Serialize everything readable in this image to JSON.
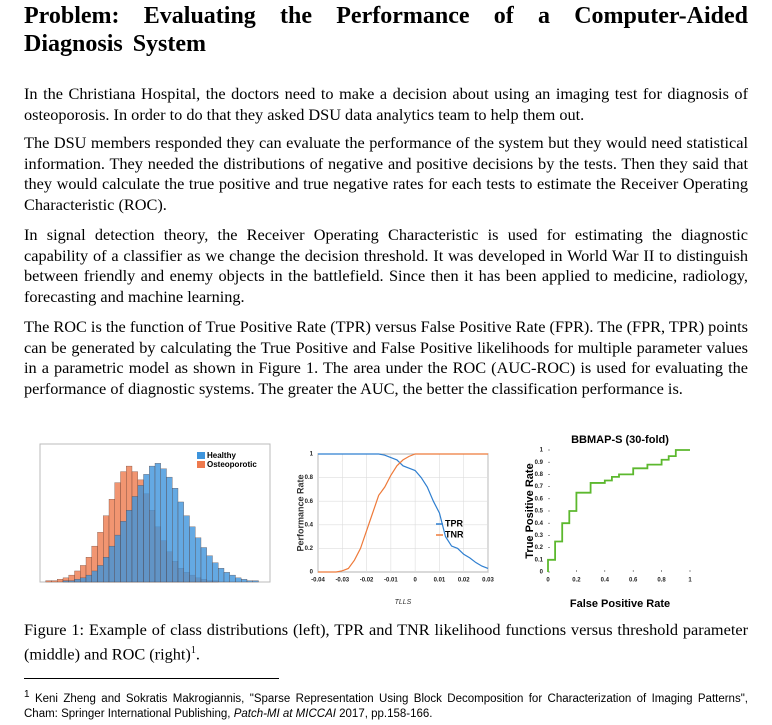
{
  "title": "Problem: Evaluating the Performance of a Computer-Aided Diagnosis System",
  "paragraphs": [
    "In the Christiana Hospital, the doctors need to make a decision about using an imaging test for diagnosis of osteoporosis. In order to do that they asked DSU data analytics team to help them out.",
    "The DSU members responded they can evaluate the performance of the system but they would need statistical information. They needed the distributions of negative and positive decisions by the tests. Then they said that they would calculate the true positive and true negative rates for each tests to estimate the Receiver Operating Characteristic (ROC).",
    "In signal detection theory, the Receiver Operating Characteristic is used for estimating the diagnostic capability of a classifier as we change the decision threshold. It was developed in World War II to distinguish between friendly and enemy objects in the battlefield. Since then it has been applied to medicine, radiology, forecasting and machine learning.",
    "The ROC is the function of True Positive Rate (TPR) versus False Positive Rate (FPR). The (FPR, TPR) points can be generated by calculating the True Positive and False Positive likelihoods for multiple parameter values in a parametric model as shown in Figure 1. The area under the ROC (AUC-ROC) is used for evaluating the performance of diagnostic systems. The greater the AUC, the better the classification performance is."
  ],
  "caption": {
    "text": "Figure 1: Example of class distributions (left), TPR and TNR likelihood functions versus threshold parameter (middle) and ROC (right)",
    "sup": "1",
    "end": "."
  },
  "footnote": {
    "marker": "1",
    "before": "Keni Zheng and Sokratis Makrogiannis, \"Sparse Representation Using Block Decomposition for Characterization of Imaging Patterns\", Cham: Springer International Publishing, ",
    "italic": "Patch-MI at MICCAI",
    "after": " 2017, pp.158-166."
  },
  "chart_data": [
    {
      "type": "histogram",
      "bins": [
        0,
        1,
        2,
        3,
        4,
        5,
        6,
        7,
        8,
        9,
        10,
        11,
        12,
        13,
        14,
        15,
        16,
        17,
        18,
        19,
        20,
        21,
        22,
        23,
        24,
        25,
        26,
        27,
        28,
        29,
        30,
        31,
        32,
        33,
        34,
        35,
        36,
        37,
        38,
        39,
        40
      ],
      "series": [
        {
          "name": "Osteoporotic",
          "color": "#ee7a4e",
          "values": [
            0,
            1,
            1,
            2,
            3,
            5,
            8,
            12,
            18,
            26,
            36,
            48,
            60,
            72,
            80,
            84,
            80,
            74,
            64,
            52,
            40,
            30,
            22,
            15,
            10,
            7,
            5,
            3,
            2,
            1,
            1,
            0,
            0,
            0,
            0,
            0,
            0,
            0,
            0,
            0
          ]
        },
        {
          "name": "Healthy",
          "color": "#3d94dc",
          "values": [
            0,
            0,
            0,
            0,
            1,
            1,
            2,
            3,
            5,
            8,
            12,
            18,
            26,
            34,
            44,
            52,
            62,
            70,
            78,
            84,
            86,
            82,
            76,
            68,
            58,
            48,
            40,
            32,
            25,
            19,
            14,
            10,
            7,
            5,
            3,
            2,
            1,
            1,
            0,
            0
          ]
        }
      ],
      "xlim": [
        0,
        40
      ],
      "ylim": [
        0,
        100
      ]
    },
    {
      "type": "line",
      "ylabel": "Performance Rate",
      "xlabel": "TLLS",
      "x": [
        -0.04,
        -0.0375,
        -0.035,
        -0.0325,
        -0.03,
        -0.0275,
        -0.025,
        -0.0225,
        -0.02,
        -0.0175,
        -0.015,
        -0.0125,
        -0.01,
        -0.0075,
        -0.005,
        -0.0025,
        0,
        0.0025,
        0.005,
        0.0075,
        0.01,
        0.0125,
        0.015,
        0.0175,
        0.02,
        0.0225,
        0.025,
        0.0275,
        0.03
      ],
      "series": [
        {
          "name": "TPR",
          "color": "#2f7fd0",
          "values": [
            1,
            1,
            1,
            1,
            1,
            1,
            1,
            1,
            1,
            1,
            1,
            0.99,
            0.97,
            0.95,
            0.9,
            0.88,
            0.86,
            0.8,
            0.72,
            0.6,
            0.5,
            0.3,
            0.22,
            0.2,
            0.15,
            0.12,
            0.08,
            0.05,
            0.03
          ]
        },
        {
          "name": "TNR",
          "color": "#ee7a3a",
          "values": [
            0,
            0,
            0,
            0,
            0.01,
            0.03,
            0.1,
            0.2,
            0.35,
            0.5,
            0.65,
            0.72,
            0.82,
            0.9,
            0.95,
            0.98,
            1,
            1,
            1,
            1,
            1,
            1,
            1,
            1,
            1,
            1,
            1,
            1,
            1
          ]
        }
      ],
      "xlim": [
        -0.04,
        0.03
      ],
      "ylim": [
        0,
        1
      ],
      "xticks": [
        -0.04,
        -0.03,
        -0.02,
        -0.01,
        0,
        0.01,
        0.02,
        0.03
      ],
      "yticks": [
        0,
        0.2,
        0.4,
        0.6,
        0.8,
        1
      ],
      "grid": true
    },
    {
      "type": "step",
      "title": "BBMAP-S (30-fold)",
      "xlabel": "False Positive Rate",
      "ylabel": "True Positive Rate",
      "x": [
        0,
        0,
        0.05,
        0.05,
        0.1,
        0.1,
        0.15,
        0.2,
        0.2,
        0.3,
        0.3,
        0.4,
        0.45,
        0.5,
        0.6,
        0.7,
        0.8,
        0.85,
        0.9,
        1
      ],
      "series": [
        {
          "color": "#5cb82e",
          "values": [
            0,
            0.1,
            0.12,
            0.25,
            0.3,
            0.4,
            0.5,
            0.55,
            0.65,
            0.7,
            0.73,
            0.75,
            0.78,
            0.8,
            0.85,
            0.88,
            0.92,
            0.95,
            1,
            1
          ]
        }
      ],
      "xlim": [
        0,
        1
      ],
      "ylim": [
        0,
        1
      ],
      "xticks": [
        0,
        0.2,
        0.4,
        0.6,
        0.8,
        1
      ],
      "yticks": [
        0,
        0.1,
        0.2,
        0.3,
        0.4,
        0.5,
        0.6,
        0.7,
        0.8,
        0.9,
        1
      ],
      "grid": false
    }
  ]
}
